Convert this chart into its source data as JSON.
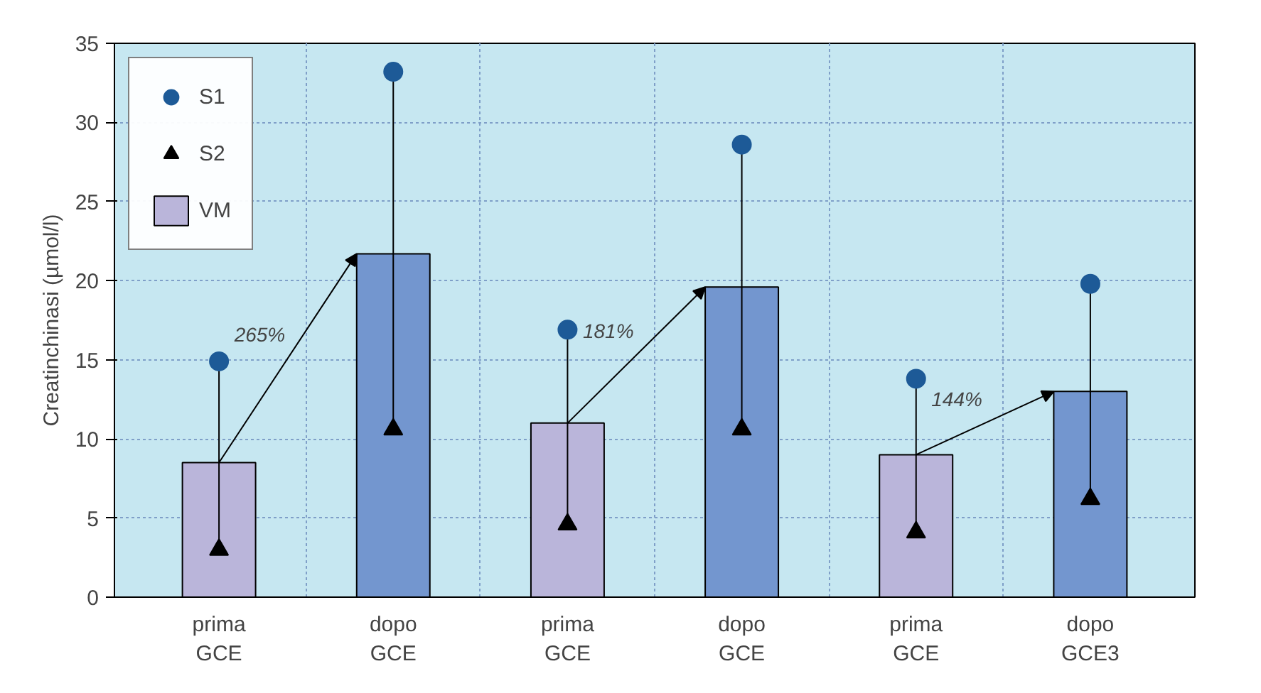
{
  "chart_data": {
    "type": "bar",
    "ylabel": "Creatinchinasi (µmol/l)",
    "categories": [
      "prima\nGCE",
      "dopo\nGCE",
      "prima\nGCE",
      "dopo\nGCE",
      "prima\nGCE",
      "dopo\nGCE3"
    ],
    "series": [
      {
        "name": "S1",
        "type": "scatter",
        "marker": "circle",
        "color": "#1d5a97",
        "values": [
          14.9,
          33.2,
          16.9,
          28.6,
          13.8,
          19.8
        ]
      },
      {
        "name": "S2",
        "type": "scatter",
        "marker": "triangle",
        "color": "#000000",
        "values": [
          3.0,
          10.6,
          4.6,
          10.6,
          4.1,
          6.2
        ]
      },
      {
        "name": "VM",
        "type": "bar",
        "colors": [
          "#bab5da",
          "#7396cf",
          "#bab5da",
          "#7396cf",
          "#bab5da",
          "#7396cf"
        ],
        "values": [
          8.5,
          21.7,
          11.0,
          19.6,
          9.0,
          13.0
        ]
      }
    ],
    "annotations": [
      "265%",
      "181%",
      "144%"
    ],
    "ylim": [
      0,
      35
    ],
    "yticks": [
      0,
      5,
      10,
      15,
      20,
      25,
      30,
      35
    ],
    "grid": true,
    "legend": "top left"
  }
}
